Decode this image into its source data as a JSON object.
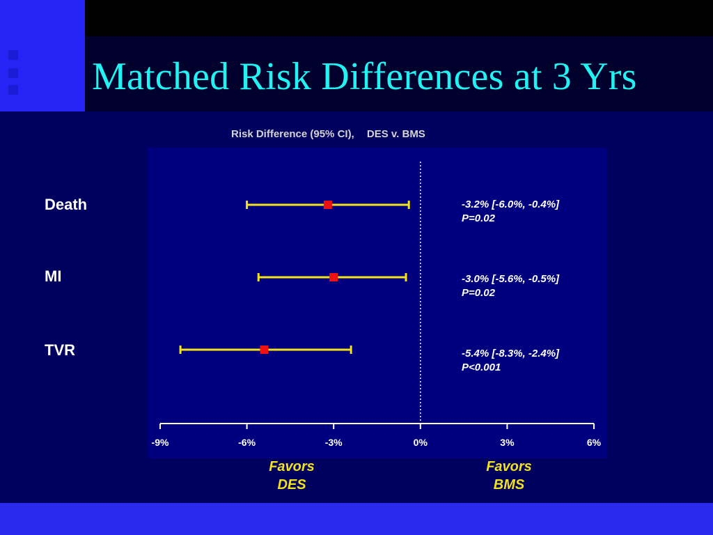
{
  "slide": {
    "title": "Matched Risk Differences at 3 Yrs"
  },
  "colors": {
    "background": "#00005e",
    "plot_area": "#00007e",
    "title": "#22f2f2",
    "ci_line": "#f2e21c",
    "point": "#ee1111",
    "favors": "#f2e21c"
  },
  "chart_data": {
    "type": "forest",
    "title": "Risk Difference (95% CI),   DES v. BMS",
    "title_parts": [
      "Risk Difference (95% CI),",
      "DES v. BMS"
    ],
    "xlim": [
      -9,
      6
    ],
    "ticks": [
      -9,
      -6,
      -3,
      0,
      3,
      6
    ],
    "tick_labels": [
      "-9%",
      "-6%",
      "-3%",
      "0%",
      "3%",
      "6%"
    ],
    "reference_line": 0,
    "rows": [
      {
        "label": "Death",
        "estimate": -3.2,
        "low": -6.0,
        "high": -0.4,
        "stat": "-3.2% [-6.0%, -0.4%]",
        "p": "P=0.02"
      },
      {
        "label": "MI",
        "estimate": -3.0,
        "low": -5.6,
        "high": -0.5,
        "stat": "-3.0% [-5.6%, -0.5%]",
        "p": "P=0.02"
      },
      {
        "label": "TVR",
        "estimate": -5.4,
        "low": -8.3,
        "high": -2.4,
        "stat": "-5.4% [-8.3%, -2.4%]",
        "p": "P<0.001"
      }
    ],
    "favors_left": [
      "Favors",
      "DES"
    ],
    "favors_right": [
      "Favors",
      "BMS"
    ]
  }
}
